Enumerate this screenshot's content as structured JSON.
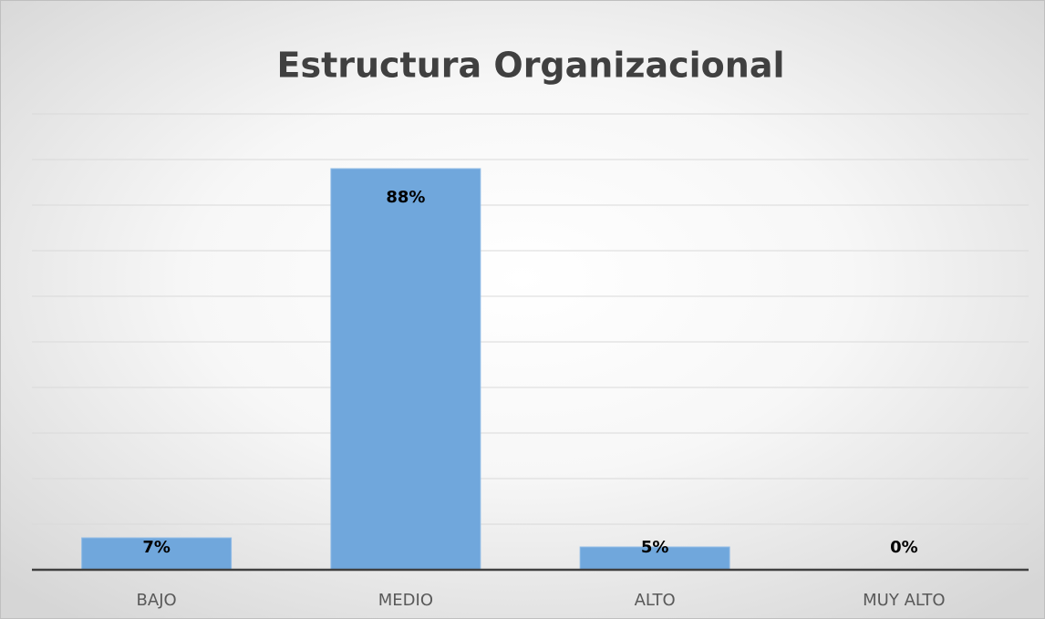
{
  "chart_data": {
    "type": "bar",
    "title": "Estructura Organizacional",
    "categories": [
      "BAJO",
      "MEDIO",
      "ALTO",
      "MUY ALTO"
    ],
    "values": [
      7,
      88,
      5,
      0
    ],
    "value_labels": [
      "7%",
      "88%",
      "5%",
      "0%"
    ],
    "color": "#70a7dc",
    "ylim": [
      0,
      100
    ],
    "yticks": [
      0,
      10,
      20,
      30,
      40,
      50,
      60,
      70,
      80,
      90,
      100
    ],
    "grid": true
  }
}
